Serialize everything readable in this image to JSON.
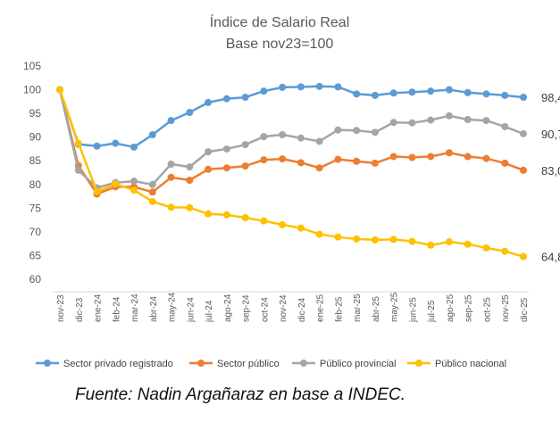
{
  "chart_data": {
    "type": "line",
    "title": "Índice de Salario Real",
    "subtitle": "Base nov23=100",
    "xlabel": "",
    "ylabel": "",
    "ylim": [
      60,
      105
    ],
    "yticks": [
      "60",
      "65",
      "70",
      "75",
      "80",
      "85",
      "90",
      "95",
      "100",
      "105"
    ],
    "grid": false,
    "legend": "bottom",
    "categories": [
      "nov-23",
      "dic-23",
      "ene-24",
      "feb-24",
      "mar-24",
      "abr-24",
      "may-24",
      "jun-24",
      "jul-24",
      "ago-24",
      "sep-24",
      "oct-24",
      "nov-24",
      "dic-24",
      "ene-25",
      "feb-25",
      "mar-25",
      "abr-25",
      "may-25",
      "jun-25",
      "jul-25",
      "ago-25",
      "sep-25",
      "oct-25",
      "nov-25",
      "dic-25"
    ],
    "series": [
      {
        "name": "Sector privado registrado",
        "color": "#5B9BD5",
        "end_label": "98,4",
        "values": [
          100,
          88.5,
          88.1,
          88.7,
          87.9,
          90.5,
          93.5,
          95.2,
          97.3,
          98.1,
          98.4,
          99.7,
          100.5,
          100.6,
          100.7,
          100.6,
          99.1,
          98.8,
          99.3,
          99.5,
          99.7,
          100.0,
          99.4,
          99.1,
          98.8,
          98.4
        ]
      },
      {
        "name": "Sector público",
        "color": "#ED7D31",
        "end_label": "83,0",
        "values": [
          100,
          84.0,
          78.0,
          79.5,
          79.5,
          78.4,
          81.5,
          80.9,
          83.2,
          83.5,
          83.9,
          85.2,
          85.4,
          84.6,
          83.5,
          85.3,
          84.9,
          84.5,
          85.9,
          85.7,
          85.9,
          86.7,
          85.9,
          85.5,
          84.5,
          83.0
        ]
      },
      {
        "name": "Público provincial",
        "color": "#A5A5A5",
        "end_label": "90,7",
        "values": [
          100,
          83.0,
          79.3,
          80.4,
          80.7,
          80.0,
          84.3,
          83.7,
          86.9,
          87.5,
          88.4,
          90.1,
          90.5,
          89.8,
          89.1,
          91.5,
          91.4,
          91.0,
          93.1,
          93.0,
          93.6,
          94.5,
          93.7,
          93.5,
          92.2,
          90.7
        ]
      },
      {
        "name": "Público nacional",
        "color": "#FFC000",
        "end_label": "64,8",
        "values": [
          100,
          88.7,
          78.5,
          80.1,
          78.8,
          76.4,
          75.2,
          75.1,
          73.8,
          73.6,
          73.0,
          72.3,
          71.5,
          70.8,
          69.5,
          68.9,
          68.5,
          68.3,
          68.4,
          68.0,
          67.2,
          67.9,
          67.4,
          66.6,
          65.9,
          64.8
        ]
      }
    ]
  },
  "source": "Fuente: Nadin Argañaraz en base a INDEC."
}
